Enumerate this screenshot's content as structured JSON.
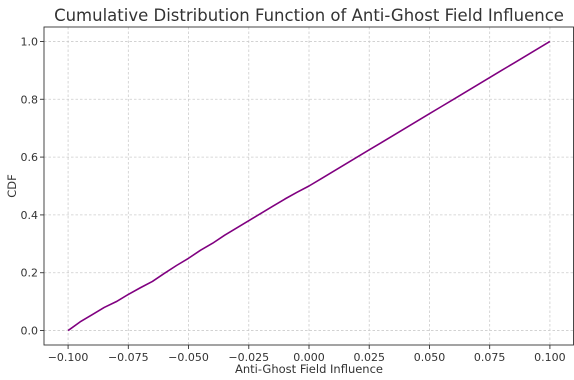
{
  "chart_data": {
    "type": "line",
    "title": "Cumulative Distribution Function of Anti-Ghost Field Influence",
    "xlabel": "Anti-Ghost Field Influence",
    "ylabel": "CDF",
    "xlim": [
      -0.11,
      0.11
    ],
    "ylim": [
      -0.05,
      1.05
    ],
    "x_ticks": [
      -0.1,
      -0.075,
      -0.05,
      -0.025,
      0.0,
      0.025,
      0.05,
      0.075,
      0.1
    ],
    "x_tick_labels": [
      "−0.100",
      "−0.075",
      "−0.050",
      "−0.025",
      "0.000",
      "0.025",
      "0.050",
      "0.075",
      "0.100"
    ],
    "y_ticks": [
      0.0,
      0.2,
      0.4,
      0.6,
      0.8,
      1.0
    ],
    "y_tick_labels": [
      "0.0",
      "0.2",
      "0.4",
      "0.6",
      "0.8",
      "1.0"
    ],
    "grid": true,
    "series": [
      {
        "color": "#800080",
        "x": [
          -0.1,
          -0.095,
          -0.09,
          -0.085,
          -0.08,
          -0.075,
          -0.07,
          -0.065,
          -0.06,
          -0.055,
          -0.05,
          -0.045,
          -0.04,
          -0.035,
          -0.03,
          -0.025,
          -0.02,
          -0.015,
          -0.01,
          -0.005,
          0.0,
          0.005,
          0.01,
          0.015,
          0.02,
          0.025,
          0.03,
          0.035,
          0.04,
          0.045,
          0.05,
          0.055,
          0.06,
          0.065,
          0.07,
          0.075,
          0.08,
          0.085,
          0.09,
          0.095,
          0.1
        ],
        "y": [
          0.0,
          0.03,
          0.055,
          0.08,
          0.1,
          0.125,
          0.148,
          0.17,
          0.198,
          0.225,
          0.25,
          0.278,
          0.302,
          0.33,
          0.355,
          0.38,
          0.405,
          0.43,
          0.455,
          0.478,
          0.5,
          0.525,
          0.55,
          0.575,
          0.6,
          0.625,
          0.65,
          0.675,
          0.7,
          0.725,
          0.75,
          0.775,
          0.8,
          0.825,
          0.85,
          0.875,
          0.9,
          0.925,
          0.95,
          0.975,
          1.0
        ]
      }
    ]
  }
}
